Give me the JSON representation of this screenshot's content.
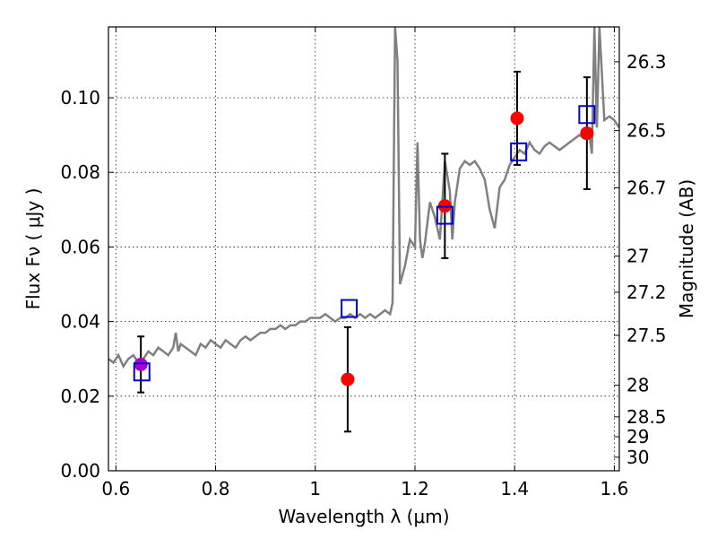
{
  "chart_data": {
    "type": "scatter",
    "title": "",
    "xlabel": "Wavelength  λ (μm)",
    "ylabel_left": "Flux  Fν  ( μJy )",
    "ylabel_right": "Magnitude (AB)",
    "xlim": [
      0.585,
      1.61
    ],
    "ylim": [
      0.0,
      0.119
    ],
    "grid": true,
    "x_ticks": [
      0.6,
      0.8,
      1.0,
      1.2,
      1.4,
      1.6
    ],
    "x_tick_labels": [
      "0.6",
      "0.8",
      "1",
      "1.2",
      "1.4",
      "1.6"
    ],
    "y_ticks": [
      0.0,
      0.02,
      0.04,
      0.06,
      0.08,
      0.1
    ],
    "y_tick_labels": [
      "0.00",
      "0.02",
      "0.04",
      "0.06",
      "0.08",
      "0.10"
    ],
    "right_axis_mag_ticks": [
      26.3,
      26.5,
      26.7,
      27,
      27.2,
      27.5,
      28,
      28.5,
      29,
      30
    ],
    "right_axis_mag_labels": [
      "26.3",
      "26.5",
      "26.7",
      "27",
      "27.2",
      "27.5",
      "28",
      "28.5",
      "29",
      "30"
    ],
    "colors": {
      "model": "#808080",
      "observed": "#ff0000",
      "model_photometry": "#0000cc",
      "highlight": "#aa00cc",
      "errorbar": "#000000"
    },
    "series": [
      {
        "kind": "model_spectrum",
        "x": [
          0.585,
          0.595,
          0.605,
          0.615,
          0.625,
          0.635,
          0.645,
          0.655,
          0.665,
          0.675,
          0.685,
          0.695,
          0.705,
          0.715,
          0.72,
          0.725,
          0.73,
          0.74,
          0.75,
          0.76,
          0.77,
          0.78,
          0.79,
          0.8,
          0.81,
          0.82,
          0.83,
          0.84,
          0.85,
          0.86,
          0.87,
          0.88,
          0.89,
          0.9,
          0.91,
          0.92,
          0.93,
          0.94,
          0.95,
          0.96,
          0.97,
          0.98,
          0.99,
          1.0,
          1.01,
          1.02,
          1.03,
          1.04,
          1.05,
          1.06,
          1.07,
          1.08,
          1.09,
          1.1,
          1.11,
          1.12,
          1.13,
          1.14,
          1.15,
          1.155,
          1.16,
          1.165,
          1.17,
          1.18,
          1.19,
          1.2,
          1.205,
          1.21,
          1.215,
          1.22,
          1.23,
          1.24,
          1.25,
          1.26,
          1.27,
          1.275,
          1.28,
          1.29,
          1.3,
          1.31,
          1.32,
          1.33,
          1.34,
          1.35,
          1.36,
          1.37,
          1.38,
          1.39,
          1.4,
          1.41,
          1.42,
          1.43,
          1.44,
          1.45,
          1.46,
          1.47,
          1.48,
          1.49,
          1.5,
          1.51,
          1.52,
          1.53,
          1.54,
          1.55,
          1.555,
          1.56,
          1.565,
          1.57,
          1.58,
          1.59,
          1.6,
          1.61
        ],
        "y": [
          0.03,
          0.029,
          0.031,
          0.028,
          0.03,
          0.031,
          0.029,
          0.03,
          0.032,
          0.031,
          0.033,
          0.032,
          0.031,
          0.033,
          0.037,
          0.032,
          0.034,
          0.033,
          0.032,
          0.031,
          0.034,
          0.033,
          0.035,
          0.034,
          0.033,
          0.035,
          0.034,
          0.033,
          0.035,
          0.036,
          0.035,
          0.036,
          0.037,
          0.037,
          0.038,
          0.038,
          0.039,
          0.038,
          0.039,
          0.039,
          0.04,
          0.04,
          0.041,
          0.041,
          0.041,
          0.042,
          0.041,
          0.04,
          0.041,
          0.041,
          0.042,
          0.041,
          0.042,
          0.041,
          0.042,
          0.041,
          0.042,
          0.043,
          0.042,
          0.045,
          0.119,
          0.11,
          0.05,
          0.055,
          0.062,
          0.06,
          0.088,
          0.062,
          0.057,
          0.061,
          0.072,
          0.068,
          0.062,
          0.083,
          0.075,
          0.062,
          0.072,
          0.081,
          0.083,
          0.082,
          0.083,
          0.081,
          0.078,
          0.07,
          0.065,
          0.076,
          0.078,
          0.082,
          0.084,
          0.086,
          0.085,
          0.088,
          0.086,
          0.085,
          0.087,
          0.088,
          0.087,
          0.086,
          0.087,
          0.088,
          0.089,
          0.09,
          0.089,
          0.09,
          0.085,
          0.119,
          0.092,
          0.119,
          0.094,
          0.095,
          0.094,
          0.092
        ]
      },
      {
        "kind": "observed",
        "x": [
          0.65,
          1.065,
          1.26,
          1.405,
          1.545
        ],
        "y": [
          0.0285,
          0.0245,
          0.071,
          0.0945,
          0.0905
        ],
        "yerr": [
          0.0075,
          0.014,
          0.014,
          0.0125,
          0.015
        ]
      },
      {
        "kind": "model_photometry",
        "x": [
          0.652,
          1.068,
          1.26,
          1.408,
          1.545
        ],
        "y": [
          0.0265,
          0.0435,
          0.0685,
          0.0855,
          0.0955
        ]
      }
    ]
  }
}
